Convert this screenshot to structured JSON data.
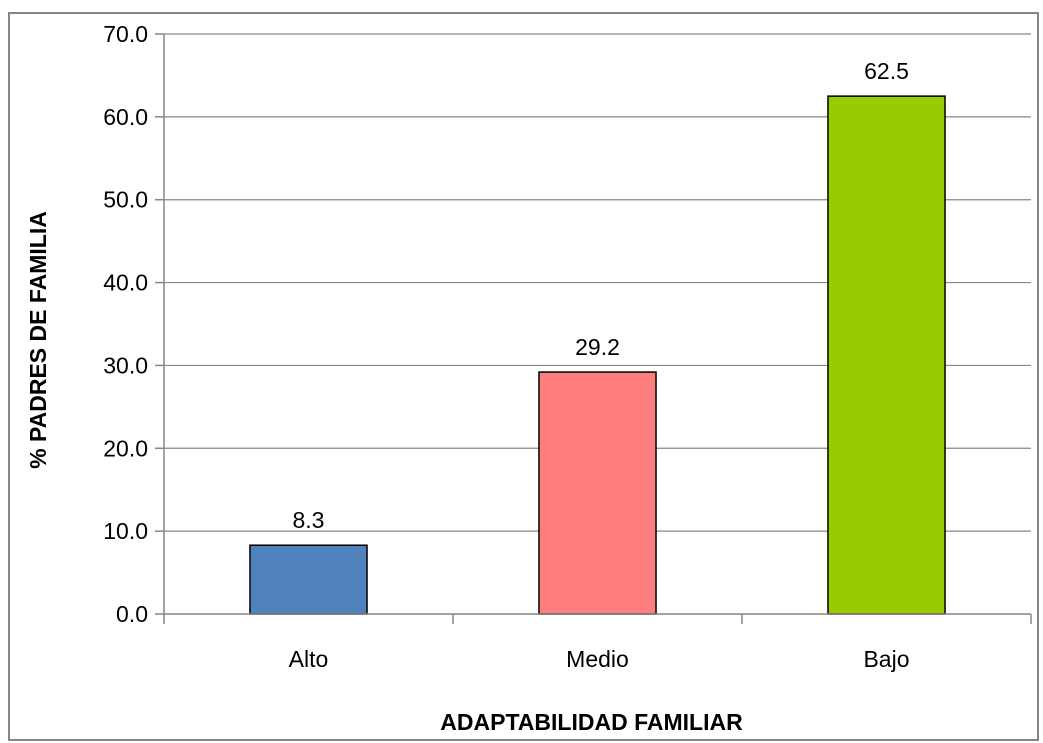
{
  "chart_data": {
    "type": "bar",
    "categories": [
      "Alto",
      "Medio",
      "Bajo"
    ],
    "values": [
      8.3,
      29.2,
      62.5
    ],
    "data_labels": [
      "8.3",
      "29.2",
      "62.5"
    ],
    "colors": [
      "#4f81bd",
      "#ff7f7f",
      "#99cc00"
    ],
    "title": "",
    "xlabel": "ADAPTABILIDAD FAMILIAR",
    "ylabel": "% PADRES DE FAMILIA",
    "ylim": [
      0,
      70
    ],
    "yticks": [
      0,
      10,
      20,
      30,
      40,
      50,
      60,
      70
    ],
    "ytick_labels": [
      "0.0",
      "10.0",
      "20.0",
      "30.0",
      "40.0",
      "50.0",
      "60.0",
      "70.0"
    ],
    "grid": true,
    "legend": "none"
  }
}
